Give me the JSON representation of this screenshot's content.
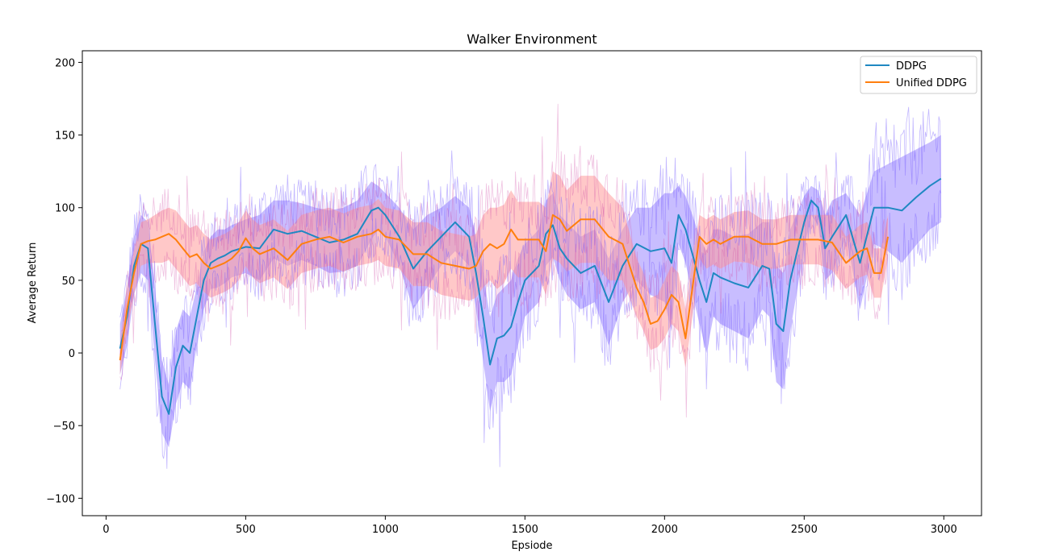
{
  "chart_data": {
    "type": "line",
    "title": "Walker Environment",
    "xlabel": "Epsiode",
    "ylabel": "Average Return",
    "xlim": [
      -85,
      3135
    ],
    "ylim": [
      -112,
      208
    ],
    "xticks": [
      0,
      500,
      1000,
      1500,
      2000,
      2500,
      3000
    ],
    "xtick_labels": [
      "0",
      "500",
      "1000",
      "1500",
      "2000",
      "2500",
      "3000"
    ],
    "yticks": [
      -100,
      -50,
      0,
      50,
      100,
      150,
      200
    ],
    "ytick_labels": [
      "−100",
      "−50",
      "0",
      "50",
      "100",
      "150",
      "200"
    ],
    "grid": false,
    "legend": "top-right",
    "series": [
      {
        "name": "DDPG",
        "color": "#1f88c2",
        "band_color": "#7b61ff",
        "x": [
          50,
          75,
          100,
          125,
          150,
          175,
          200,
          225,
          250,
          275,
          300,
          325,
          350,
          375,
          400,
          425,
          450,
          500,
          550,
          600,
          650,
          700,
          750,
          800,
          850,
          900,
          950,
          975,
          1000,
          1050,
          1100,
          1150,
          1200,
          1250,
          1300,
          1325,
          1350,
          1375,
          1400,
          1425,
          1450,
          1475,
          1500,
          1550,
          1575,
          1600,
          1625,
          1650,
          1700,
          1750,
          1800,
          1850,
          1900,
          1950,
          2000,
          2025,
          2050,
          2075,
          2100,
          2125,
          2150,
          2175,
          2200,
          2250,
          2300,
          2350,
          2375,
          2400,
          2425,
          2450,
          2500,
          2525,
          2550,
          2575,
          2600,
          2650,
          2700,
          2750,
          2800,
          2850,
          2900,
          2950,
          2990
        ],
        "y": [
          3,
          25,
          60,
          75,
          72,
          20,
          -30,
          -42,
          -10,
          5,
          0,
          25,
          50,
          62,
          65,
          67,
          70,
          73,
          72,
          85,
          82,
          84,
          80,
          76,
          78,
          82,
          98,
          100,
          95,
          80,
          58,
          70,
          80,
          90,
          80,
          55,
          25,
          -8,
          10,
          12,
          18,
          35,
          50,
          60,
          82,
          88,
          72,
          65,
          55,
          60,
          35,
          60,
          75,
          70,
          72,
          62,
          95,
          85,
          68,
          50,
          35,
          55,
          52,
          48,
          45,
          60,
          58,
          20,
          15,
          50,
          90,
          105,
          100,
          72,
          80,
          95,
          62,
          100,
          100,
          98,
          107,
          115,
          120
        ],
        "upper": [
          20,
          45,
          80,
          95,
          90,
          45,
          -5,
          -22,
          15,
          30,
          25,
          45,
          70,
          80,
          85,
          85,
          88,
          92,
          95,
          105,
          105,
          103,
          100,
          98,
          100,
          105,
          118,
          115,
          110,
          100,
          85,
          95,
          100,
          108,
          100,
          80,
          55,
          25,
          40,
          45,
          50,
          65,
          75,
          85,
          105,
          110,
          95,
          90,
          80,
          85,
          65,
          85,
          100,
          100,
          110,
          110,
          115,
          108,
          95,
          80,
          70,
          85,
          85,
          80,
          82,
          90,
          90,
          60,
          55,
          85,
          108,
          115,
          112,
          95,
          105,
          110,
          95,
          125,
          130,
          135,
          140,
          145,
          150
        ],
        "lower": [
          -15,
          5,
          40,
          55,
          50,
          -5,
          -55,
          -65,
          -35,
          -20,
          -25,
          5,
          30,
          44,
          45,
          48,
          52,
          55,
          50,
          65,
          60,
          64,
          60,
          55,
          56,
          60,
          78,
          85,
          80,
          60,
          30,
          45,
          60,
          70,
          60,
          30,
          -5,
          -40,
          -20,
          -20,
          -15,
          5,
          25,
          35,
          60,
          66,
          50,
          40,
          30,
          35,
          5,
          35,
          50,
          40,
          35,
          15,
          75,
          62,
          40,
          20,
          0,
          25,
          20,
          15,
          10,
          30,
          25,
          -20,
          -25,
          15,
          72,
          95,
          88,
          50,
          55,
          80,
          30,
          75,
          70,
          62,
          74,
          85,
          90
        ]
      },
      {
        "name": "Unified DDPG",
        "color": "#ff7f0e",
        "band_color": "#ff9a9a",
        "x": [
          50,
          75,
          100,
          125,
          150,
          175,
          200,
          225,
          250,
          275,
          300,
          325,
          350,
          375,
          400,
          425,
          450,
          475,
          500,
          525,
          550,
          600,
          650,
          700,
          750,
          800,
          850,
          900,
          950,
          975,
          1000,
          1050,
          1100,
          1150,
          1200,
          1250,
          1300,
          1325,
          1350,
          1375,
          1400,
          1425,
          1450,
          1475,
          1500,
          1550,
          1575,
          1600,
          1625,
          1650,
          1700,
          1750,
          1800,
          1850,
          1900,
          1925,
          1950,
          1975,
          2000,
          2025,
          2050,
          2075,
          2100,
          2125,
          2150,
          2175,
          2200,
          2250,
          2300,
          2350,
          2400,
          2450,
          2500,
          2550,
          2600,
          2650,
          2700,
          2725,
          2750,
          2775,
          2800
        ],
        "y": [
          -5,
          30,
          55,
          75,
          77,
          78,
          80,
          82,
          78,
          72,
          66,
          68,
          62,
          58,
          60,
          62,
          65,
          70,
          79,
          72,
          68,
          72,
          64,
          75,
          78,
          80,
          76,
          80,
          82,
          85,
          80,
          78,
          68,
          68,
          62,
          60,
          58,
          60,
          70,
          75,
          72,
          75,
          85,
          78,
          78,
          78,
          70,
          95,
          92,
          84,
          92,
          92,
          80,
          75,
          45,
          35,
          20,
          22,
          30,
          40,
          35,
          10,
          45,
          80,
          75,
          78,
          75,
          80,
          80,
          75,
          75,
          78,
          78,
          78,
          76,
          62,
          70,
          72,
          55,
          55,
          80
        ],
        "upper": [
          5,
          45,
          70,
          90,
          92,
          95,
          98,
          100,
          98,
          92,
          86,
          88,
          82,
          78,
          80,
          82,
          85,
          90,
          98,
          92,
          88,
          92,
          84,
          95,
          98,
          100,
          96,
          100,
          102,
          106,
          100,
          98,
          90,
          90,
          84,
          82,
          80,
          82,
          95,
          100,
          100,
          102,
          112,
          104,
          104,
          104,
          100,
          125,
          122,
          112,
          122,
          122,
          110,
          100,
          65,
          55,
          38,
          40,
          50,
          60,
          55,
          30,
          65,
          95,
          92,
          95,
          92,
          97,
          98,
          92,
          92,
          95,
          95,
          95,
          95,
          80,
          88,
          90,
          72,
          72,
          95
        ],
        "lower": [
          -15,
          15,
          40,
          60,
          62,
          62,
          62,
          64,
          58,
          52,
          46,
          48,
          42,
          38,
          40,
          42,
          45,
          50,
          60,
          52,
          48,
          52,
          44,
          55,
          58,
          60,
          56,
          60,
          62,
          64,
          60,
          58,
          46,
          46,
          40,
          38,
          36,
          38,
          45,
          50,
          44,
          48,
          58,
          52,
          52,
          52,
          40,
          65,
          62,
          56,
          62,
          62,
          50,
          50,
          25,
          15,
          2,
          4,
          10,
          20,
          15,
          -10,
          25,
          65,
          58,
          61,
          58,
          63,
          62,
          58,
          58,
          61,
          61,
          61,
          57,
          44,
          52,
          54,
          38,
          38,
          65
        ]
      }
    ]
  }
}
